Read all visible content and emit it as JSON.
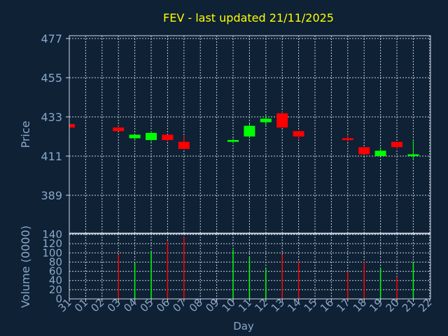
{
  "chart_data": {
    "type": "candlestick",
    "title": "FEV - last updated 21/11/2025",
    "xlabel": "Day",
    "ylabel": "Price",
    "volume_label": "Volume (0000)",
    "grid": true,
    "x_ticks": [
      "31",
      "01",
      "02",
      "03",
      "04",
      "05",
      "06",
      "07",
      "08",
      "09",
      "10",
      "11",
      "12",
      "13",
      "14",
      "15",
      "16",
      "17",
      "18",
      "19",
      "20",
      "21",
      "22"
    ],
    "price_ticks": [
      "477",
      "455",
      "433",
      "411",
      "389"
    ],
    "price_ylim": [
      367,
      477
    ],
    "volume_ticks": [
      "140",
      "120",
      "100",
      "80",
      "60",
      "40",
      "20",
      "0"
    ],
    "volume_ylim": [
      0,
      140
    ],
    "candles": [
      {
        "day": "31",
        "open": 429,
        "close": 427,
        "high": 429,
        "low": 427
      },
      {
        "day": "03",
        "open": 427,
        "close": 425,
        "high": 428,
        "low": 425
      },
      {
        "day": "04",
        "open": 421,
        "close": 423,
        "high": 423,
        "low": 420
      },
      {
        "day": "05",
        "open": 420,
        "close": 424,
        "high": 425,
        "low": 419
      },
      {
        "day": "06",
        "open": 423,
        "close": 420,
        "high": 423,
        "low": 419
      },
      {
        "day": "07",
        "open": 419,
        "close": 415,
        "high": 423,
        "low": 415
      },
      {
        "day": "10",
        "open": 419,
        "close": 420,
        "high": 421,
        "low": 418
      },
      {
        "day": "11",
        "open": 422,
        "close": 428,
        "high": 429,
        "low": 421
      },
      {
        "day": "12",
        "open": 430,
        "close": 432,
        "high": 434,
        "low": 428
      },
      {
        "day": "13",
        "open": 435,
        "close": 427,
        "high": 436,
        "low": 427
      },
      {
        "day": "14",
        "open": 425,
        "close": 422,
        "high": 425,
        "low": 420
      },
      {
        "day": "17",
        "open": 421,
        "close": 420,
        "high": 423,
        "low": 419
      },
      {
        "day": "18",
        "open": 416,
        "close": 412,
        "high": 416,
        "low": 412
      },
      {
        "day": "19",
        "open": 411,
        "close": 414,
        "high": 416,
        "low": 411
      },
      {
        "day": "20",
        "open": 419,
        "close": 416,
        "high": 419,
        "low": 415
      },
      {
        "day": "21",
        "open": 411,
        "close": 412,
        "high": 420,
        "low": 409
      }
    ],
    "volumes": [
      {
        "day": "03",
        "value": 97,
        "direction": "down"
      },
      {
        "day": "04",
        "value": 80,
        "direction": "up"
      },
      {
        "day": "05",
        "value": 103,
        "direction": "up"
      },
      {
        "day": "06",
        "value": 125,
        "direction": "down"
      },
      {
        "day": "07",
        "value": 135,
        "direction": "down"
      },
      {
        "day": "10",
        "value": 107,
        "direction": "up"
      },
      {
        "day": "11",
        "value": 90,
        "direction": "up"
      },
      {
        "day": "12",
        "value": 65,
        "direction": "up"
      },
      {
        "day": "13",
        "value": 97,
        "direction": "down"
      },
      {
        "day": "14",
        "value": 82,
        "direction": "down"
      },
      {
        "day": "17",
        "value": 60,
        "direction": "down"
      },
      {
        "day": "18",
        "value": 80,
        "direction": "down"
      },
      {
        "day": "19",
        "value": 68,
        "direction": "up"
      },
      {
        "day": "20",
        "value": 48,
        "direction": "down"
      },
      {
        "day": "21",
        "value": 80,
        "direction": "up"
      }
    ]
  },
  "colors": {
    "background": "#0e2135",
    "title": "#ffff00",
    "axis_text": "#8aa8c8",
    "frame": "#cfd8e3",
    "grid": "#c8d0dc",
    "up": "#00ff00",
    "down": "#ff0000"
  }
}
